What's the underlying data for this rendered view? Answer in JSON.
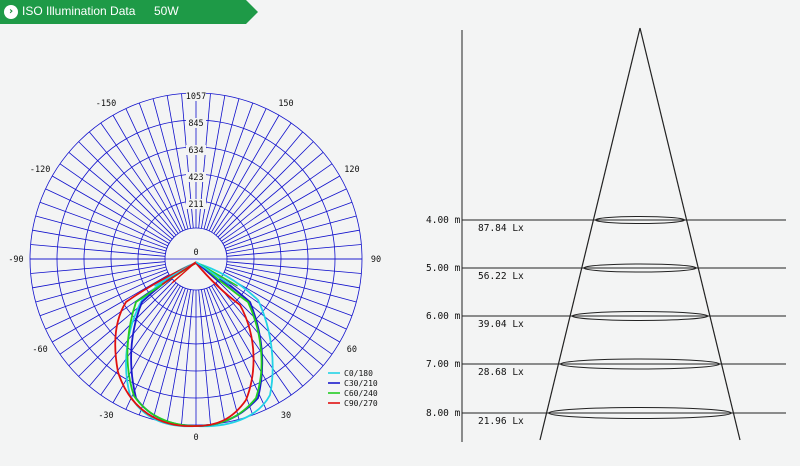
{
  "header": {
    "title": "ISO Illumination  Data",
    "power": "50W",
    "bg_color": "#1e9a47"
  },
  "polar": {
    "radial_labels": [
      "1057",
      "845",
      "634",
      "423",
      "211"
    ],
    "angle_labels": [
      {
        "text": "0",
        "deg": 0
      },
      {
        "text": "-150",
        "deg": -150
      },
      {
        "text": "150",
        "deg": 150
      },
      {
        "text": "-120",
        "deg": -120
      },
      {
        "text": "120",
        "deg": 120
      },
      {
        "text": "-90",
        "deg": -90
      },
      {
        "text": "90",
        "deg": 90
      },
      {
        "text": "-60",
        "deg": -60
      },
      {
        "text": "60",
        "deg": 60
      },
      {
        "text": "-30",
        "deg": -30
      },
      {
        "text": "30",
        "deg": 30
      },
      {
        "text": "0",
        "deg": 180
      }
    ],
    "grid_color": "#1010cc",
    "legend": [
      {
        "label": "C0/180",
        "color": "#22d3e6"
      },
      {
        "label": "C30/210",
        "color": "#1a1acc"
      },
      {
        "label": "C60/240",
        "color": "#22cc22"
      },
      {
        "label": "C90/270",
        "color": "#e01010"
      }
    ]
  },
  "cone": {
    "levels": [
      {
        "height": "4.00 m",
        "lux": "87.84 Lx"
      },
      {
        "height": "5.00 m",
        "lux": "56.22 Lx"
      },
      {
        "height": "6.00 m",
        "lux": "39.04 Lx"
      },
      {
        "height": "7.00 m",
        "lux": "28.68 Lx"
      },
      {
        "height": "8.00 m",
        "lux": "21.96 Lx"
      }
    ]
  }
}
